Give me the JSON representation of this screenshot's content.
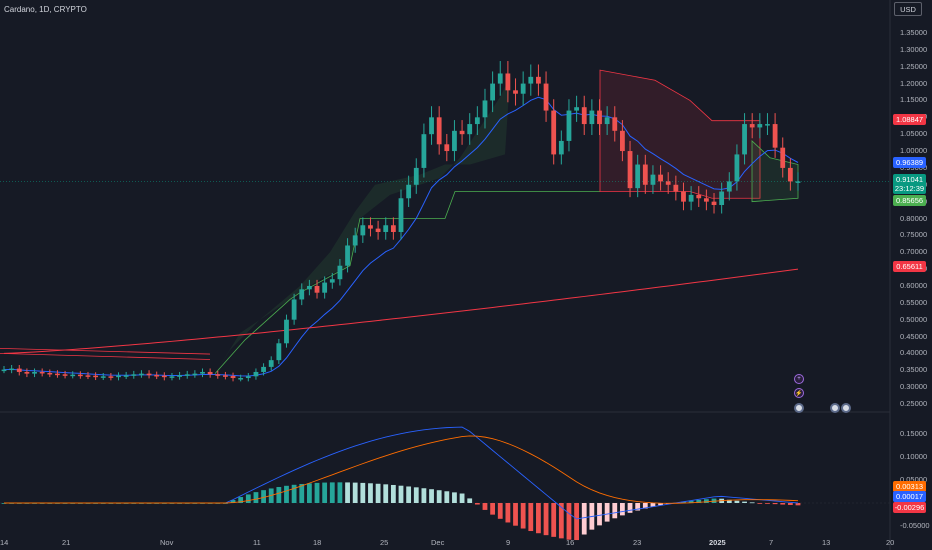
{
  "header": {
    "symbol": "Cardano, 1D, CRYPTO",
    "currency": "USD"
  },
  "price_axis": [
    "1.35000",
    "1.30000",
    "1.25000",
    "1.20000",
    "1.15000",
    "1.10000",
    "1.05000",
    "1.00000",
    "0.95000",
    "0.90000",
    "0.85000",
    "0.80000",
    "0.75000",
    "0.70000",
    "0.65000",
    "0.60000",
    "0.55000",
    "0.50000",
    "0.45000",
    "0.40000",
    "0.35000",
    "0.30000",
    "0.25000"
  ],
  "macd_axis": [
    "0.15000",
    "0.10000",
    "0.05000",
    "-0.05000"
  ],
  "time_axis": [
    "14",
    "21",
    "Nov",
    "11",
    "18",
    "25",
    "Dec",
    "9",
    "16",
    "23",
    "2025",
    "7",
    "13",
    "20"
  ],
  "badges": {
    "cloud_top": {
      "label": "1.08847",
      "color": "#f23645"
    },
    "ema": {
      "label": "0.96389",
      "color": "#2962ff"
    },
    "last": {
      "label": "0.91041",
      "countdown": "23:12:39",
      "color": "#089981"
    },
    "cloud_bottom": {
      "label": "0.85656",
      "color": "#4caf50"
    },
    "long_ma": {
      "label": "0.65611",
      "color": "#f23645"
    },
    "macd_signal": {
      "label": "0.00313",
      "color": "#ff6d00"
    },
    "macd_line": {
      "label": "0.00017",
      "color": "#2962ff"
    },
    "histogram": {
      "label": "-0.00296",
      "color": "#f23645"
    }
  },
  "markers": [
    {
      "icon": "plus-icon",
      "symbol": "+"
    },
    {
      "icon": "lightning-icon",
      "symbol": "⚡"
    }
  ],
  "colors": {
    "up": "#26a69a",
    "down": "#ef5350",
    "ema": "#2962ff",
    "long_ma": "#f23645",
    "signal": "#ff6d00"
  },
  "chart_data": {
    "type": "candlestick",
    "title": "Cardano, 1D, CRYPTO",
    "ylim": [
      0.25,
      1.35
    ],
    "x": [
      "Oct 14",
      "Oct 21",
      "Nov 1",
      "Nov 11",
      "Nov 18",
      "Nov 25",
      "Dec 1",
      "Dec 9",
      "Dec 16",
      "Dec 23",
      "2025",
      "Jan 7",
      "Jan 13",
      "Jan 20"
    ],
    "closes": [
      0.352,
      0.355,
      0.345,
      0.34,
      0.345,
      0.342,
      0.34,
      0.338,
      0.336,
      0.337,
      0.335,
      0.334,
      0.331,
      0.332,
      0.33,
      0.334,
      0.335,
      0.338,
      0.34,
      0.336,
      0.334,
      0.33,
      0.332,
      0.335,
      0.338,
      0.34,
      0.345,
      0.338,
      0.335,
      0.333,
      0.327,
      0.327,
      0.332,
      0.345,
      0.36,
      0.38,
      0.43,
      0.5,
      0.56,
      0.59,
      0.6,
      0.58,
      0.61,
      0.62,
      0.66,
      0.72,
      0.75,
      0.78,
      0.77,
      0.76,
      0.78,
      0.76,
      0.86,
      0.9,
      0.95,
      1.05,
      1.1,
      1.02,
      1.0,
      1.06,
      1.05,
      1.08,
      1.1,
      1.15,
      1.2,
      1.23,
      1.18,
      1.17,
      1.2,
      1.22,
      1.2,
      1.12,
      0.99,
      1.03,
      1.12,
      1.13,
      1.08,
      1.12,
      1.08,
      1.1,
      1.06,
      1.0,
      0.89,
      0.96,
      0.9,
      0.93,
      0.91,
      0.9,
      0.88,
      0.85,
      0.87,
      0.86,
      0.85,
      0.84,
      0.88,
      0.91,
      0.99,
      1.08,
      1.07,
      1.08,
      1.08,
      1.01,
      0.95,
      0.91,
      0.91
    ],
    "macd": {
      "range": [
        -0.06,
        0.17
      ],
      "macd_last": 0.00017,
      "signal_last": 0.00313,
      "hist_last": -0.00296
    }
  }
}
